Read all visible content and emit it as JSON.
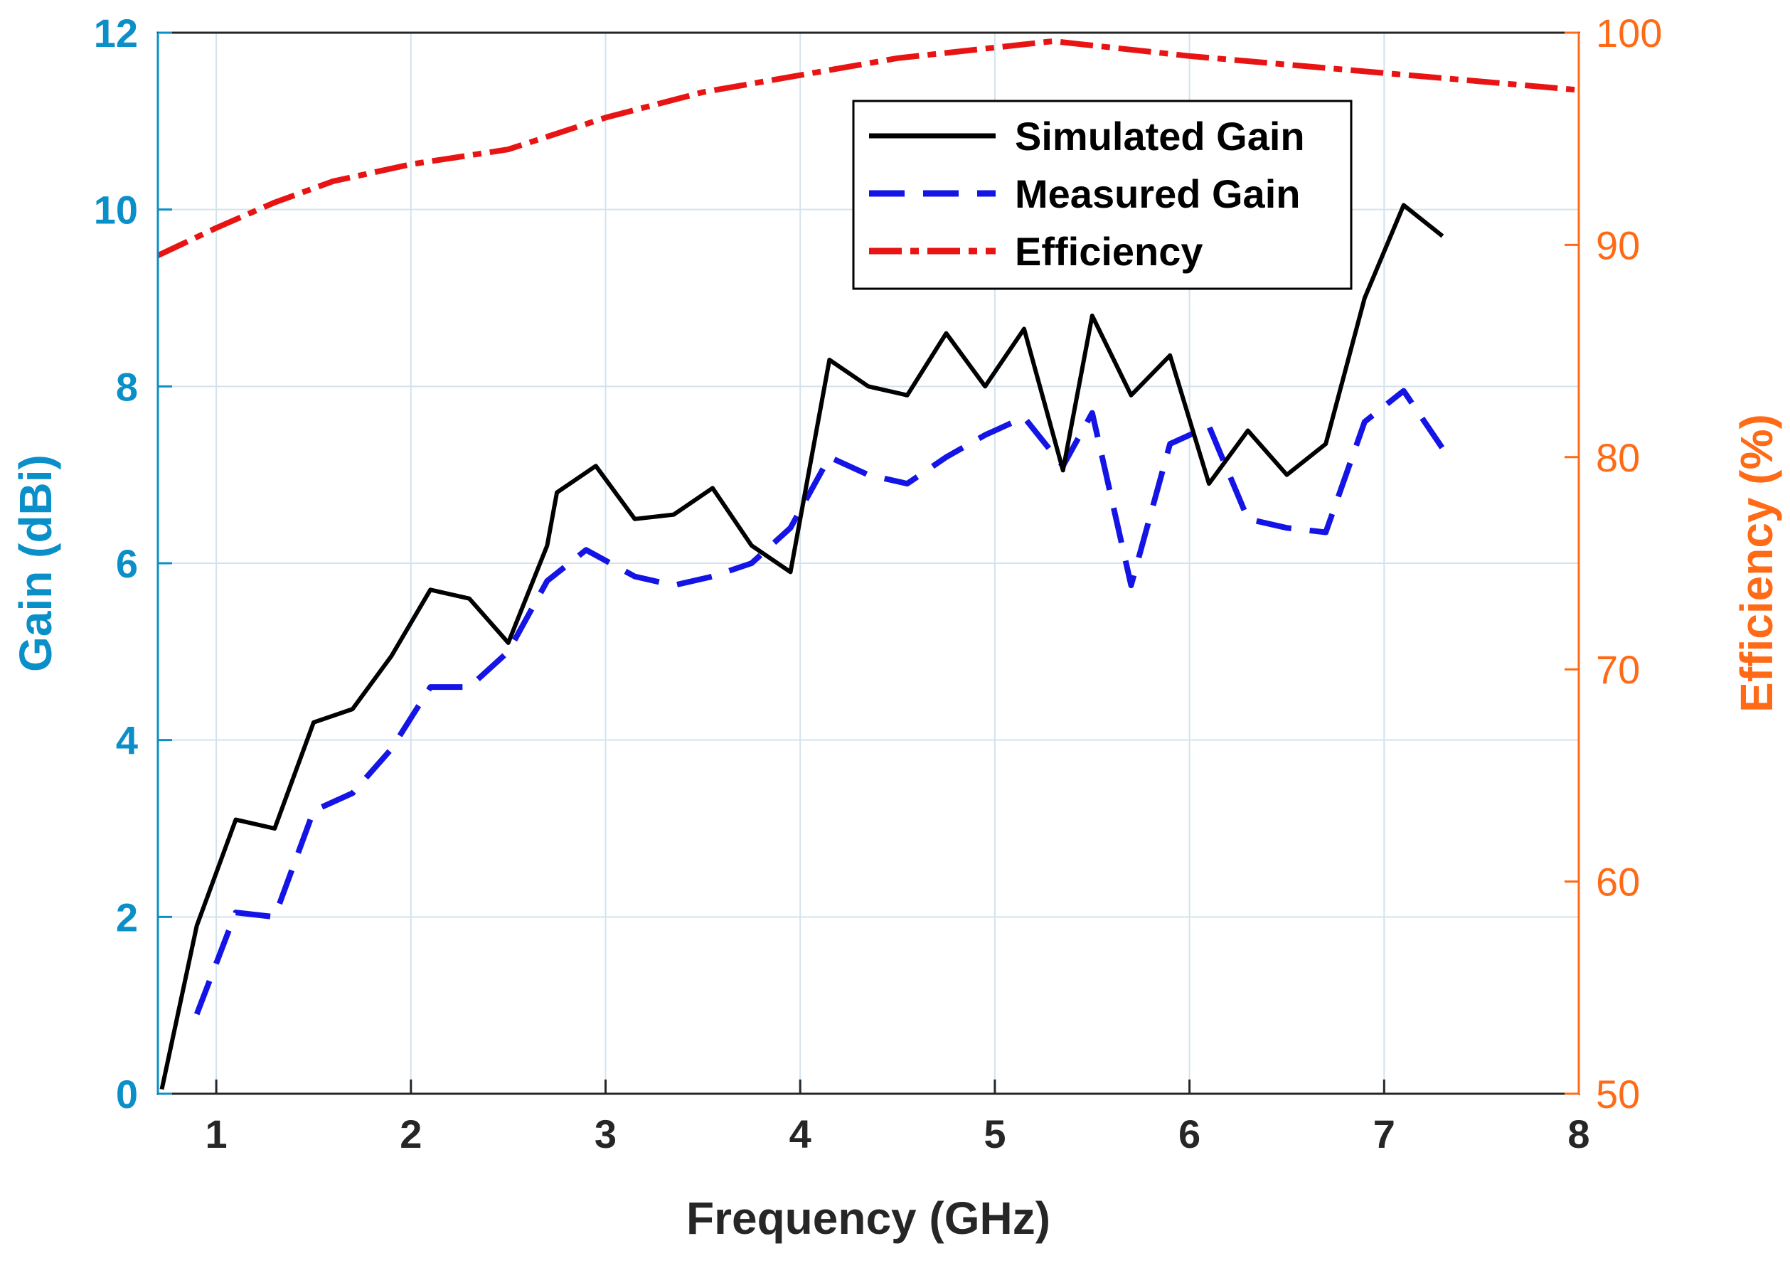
{
  "chart_data": {
    "type": "line",
    "xlabel": "Frequency (GHz)",
    "ylabel_left": "Gain (dBi)",
    "ylabel_right": "Efficiency (%)",
    "xlim": [
      0.7,
      8
    ],
    "ylim_left": [
      0,
      12
    ],
    "ylim_right": [
      50,
      100
    ],
    "x_ticks": [
      "1",
      "2",
      "3",
      "4",
      "5",
      "6",
      "7",
      "8"
    ],
    "y_left_ticks": [
      "0",
      "2",
      "4",
      "6",
      "8",
      "10",
      "12"
    ],
    "y_right_ticks": [
      "50",
      "60",
      "70",
      "80",
      "90",
      "100"
    ],
    "grid": true,
    "legend_position": "top-right",
    "colors": {
      "left_axis": "#0A8FC8",
      "right_axis": "#FF6A16",
      "simulated": "#000000",
      "measured": "#1414E6",
      "efficiency": "#E81414",
      "grid": "#D3E3EE"
    },
    "series": [
      {
        "name": "Simulated Gain",
        "axis": "left",
        "style": "solid",
        "x": [
          0.72,
          0.9,
          1.1,
          1.3,
          1.5,
          1.7,
          1.9,
          2.1,
          2.3,
          2.5,
          2.7,
          2.75,
          2.95,
          3.15,
          3.35,
          3.55,
          3.75,
          3.95,
          4.15,
          4.35,
          4.55,
          4.75,
          4.95,
          5.15,
          5.35,
          5.5,
          5.7,
          5.9,
          6.1,
          6.3,
          6.5,
          6.7,
          6.9,
          7.1,
          7.3
        ],
        "values": [
          0.05,
          1.9,
          3.1,
          3.0,
          4.2,
          4.35,
          4.95,
          5.7,
          5.6,
          5.1,
          6.2,
          6.8,
          7.1,
          6.5,
          6.55,
          6.85,
          6.2,
          5.9,
          8.3,
          8.0,
          7.9,
          8.6,
          8.0,
          8.65,
          7.05,
          8.8,
          7.9,
          8.35,
          6.9,
          7.5,
          7.0,
          7.35,
          9.0,
          10.05,
          9.7
        ]
      },
      {
        "name": "Measured Gain",
        "axis": "left",
        "style": "dashed",
        "x": [
          0.9,
          1.1,
          1.3,
          1.5,
          1.7,
          1.9,
          2.1,
          2.3,
          2.5,
          2.7,
          2.9,
          3.15,
          3.35,
          3.55,
          3.75,
          3.95,
          4.15,
          4.35,
          4.55,
          4.75,
          4.95,
          5.15,
          5.35,
          5.5,
          5.7,
          5.9,
          6.1,
          6.3,
          6.5,
          6.7,
          6.9,
          7.1,
          7.3
        ],
        "values": [
          0.9,
          2.05,
          2.0,
          3.2,
          3.4,
          3.9,
          4.6,
          4.6,
          5.0,
          5.8,
          6.15,
          5.85,
          5.75,
          5.85,
          6.0,
          6.4,
          7.2,
          7.0,
          6.9,
          7.2,
          7.45,
          7.65,
          7.1,
          7.7,
          5.75,
          7.35,
          7.55,
          6.5,
          6.4,
          6.35,
          7.6,
          7.95,
          7.3
        ]
      },
      {
        "name": "Efficiency",
        "axis": "right",
        "style": "dash-dot",
        "x": [
          0.7,
          1.0,
          1.3,
          1.6,
          2.0,
          2.5,
          3.0,
          3.5,
          4.0,
          4.5,
          5.0,
          5.3,
          5.5,
          6.0,
          6.5,
          7.0,
          7.5,
          8.0
        ],
        "values": [
          89.5,
          90.8,
          92.0,
          93.0,
          93.8,
          94.5,
          96.0,
          97.2,
          98.0,
          98.8,
          99.3,
          99.6,
          99.4,
          98.9,
          98.5,
          98.1,
          97.7,
          97.3
        ]
      }
    ]
  }
}
